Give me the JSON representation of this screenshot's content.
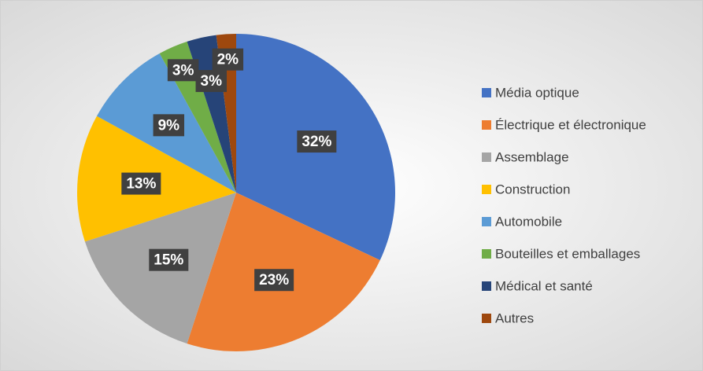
{
  "chart_data": {
    "type": "pie",
    "categories": [
      "Média optique",
      "Électrique et électronique",
      "Assemblage",
      "Construction",
      "Automobile",
      "Bouteilles et emballages",
      "Médical et santé",
      "Autres"
    ],
    "values": [
      32,
      23,
      15,
      13,
      9,
      3,
      3,
      2
    ],
    "value_labels": [
      "32%",
      "23%",
      "15%",
      "13%",
      "9%",
      "3%",
      "3%",
      "2%"
    ],
    "colors": [
      "#4472c4",
      "#ed7d31",
      "#a5a5a5",
      "#ffc000",
      "#5b9bd5",
      "#70ad47",
      "#264478",
      "#9e480e"
    ],
    "legend": "right"
  }
}
